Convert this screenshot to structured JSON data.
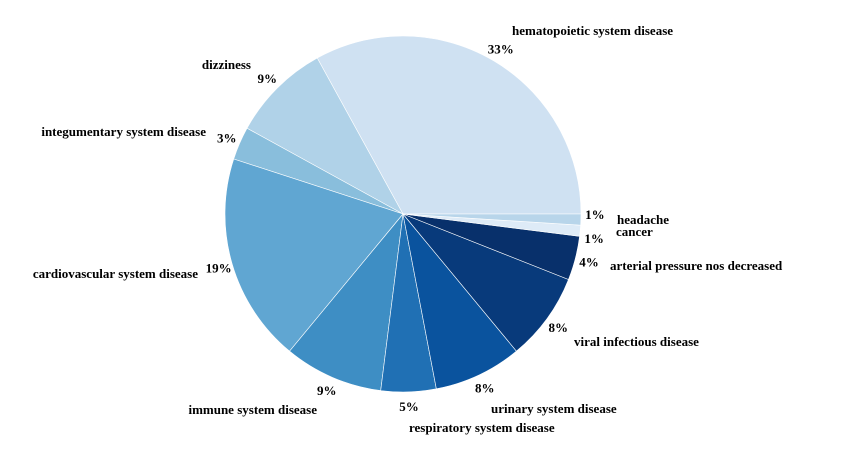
{
  "chart_data": {
    "type": "pie",
    "title": "",
    "start_angle_deg": 0,
    "direction": "counterclockwise",
    "slices": [
      {
        "label": "hematopoietic system disease",
        "value": 33,
        "pct_text": "33%",
        "color": "#cfe1f2"
      },
      {
        "label": "dizziness",
        "value": 9,
        "pct_text": "9%",
        "color": "#b0d2e8"
      },
      {
        "label": "integumentary system disease",
        "value": 3,
        "pct_text": "3%",
        "color": "#89bedc"
      },
      {
        "label": "cardiovascular system disease",
        "value": 19,
        "pct_text": "19%",
        "color": "#60a6d2"
      },
      {
        "label": "immune system disease",
        "value": 9,
        "pct_text": "9%",
        "color": "#3e8ec4"
      },
      {
        "label": "respiratory system disease",
        "value": 5,
        "pct_text": "5%",
        "color": "#2070b4"
      },
      {
        "label": "urinary system disease",
        "value": 8,
        "pct_text": "8%",
        "color": "#0a539e"
      },
      {
        "label": "viral infectious disease",
        "value": 8,
        "pct_text": "8%",
        "color": "#083a7b"
      },
      {
        "label": "arterial pressure nos decreased",
        "value": 4,
        "pct_text": "4%",
        "color": "#08306b"
      },
      {
        "label": "cancer",
        "value": 1,
        "pct_text": "1%",
        "color": "#deebf7"
      },
      {
        "label": "headache",
        "value": 1,
        "pct_text": "1%",
        "color": "#b8d5ea"
      }
    ]
  }
}
